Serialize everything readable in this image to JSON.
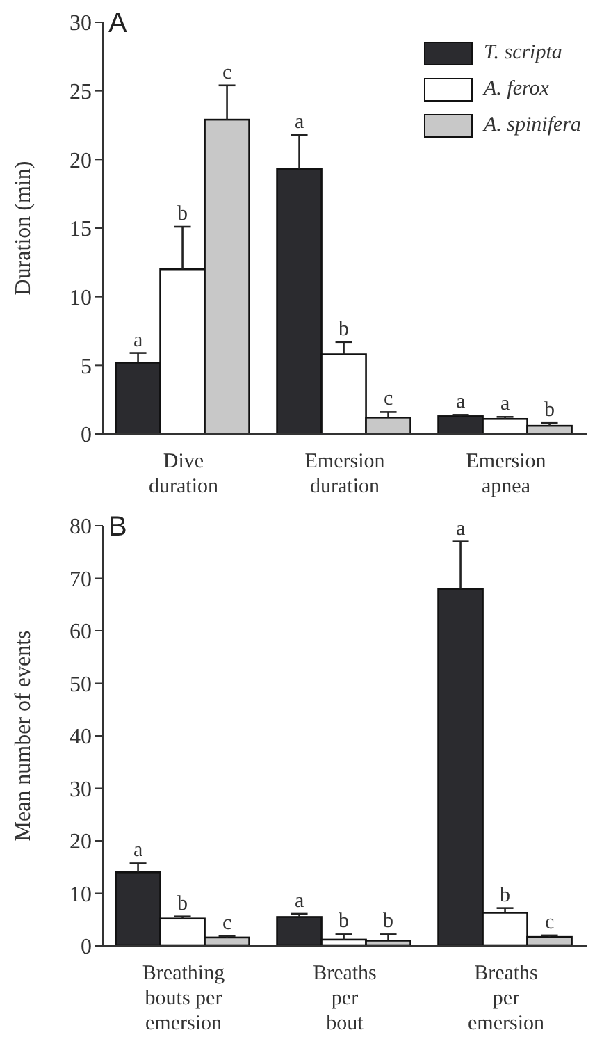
{
  "chart_data": [
    {
      "type": "bar",
      "title": "A",
      "ylabel": "Duration (min)",
      "categories": [
        "Dive\nduration",
        "Emersion\nduration",
        "Emersion\napnea"
      ],
      "ylim": [
        0,
        30
      ],
      "yticks": [
        0,
        5,
        10,
        15,
        20,
        25,
        30
      ],
      "grid": false,
      "legend": "top right",
      "series": [
        {
          "name": "T. scripta",
          "color": "#2b2b2f",
          "values": [
            5.2,
            19.3,
            1.3
          ],
          "errors": [
            [
              5.2,
              5.9
            ],
            [
              19.3,
              21.8
            ],
            [
              1.3,
              1.4
            ]
          ],
          "value_labels": [
            "a",
            "a",
            "a"
          ]
        },
        {
          "name": "A. ferox",
          "color": "#ffffff",
          "values": [
            12.0,
            5.8,
            1.1
          ],
          "errors": [
            [
              12.0,
              15.1
            ],
            [
              5.8,
              6.7
            ],
            [
              1.1,
              1.25
            ]
          ],
          "value_labels": [
            "b",
            "b",
            "a"
          ]
        },
        {
          "name": "A. spinifera",
          "color": "#c8c8c8",
          "values": [
            22.9,
            1.2,
            0.6
          ],
          "errors": [
            [
              22.9,
              25.4
            ],
            [
              1.2,
              1.6
            ],
            [
              0.6,
              0.8
            ]
          ],
          "value_labels": [
            "c",
            "c",
            "b"
          ]
        }
      ]
    },
    {
      "type": "bar",
      "title": "B",
      "ylabel": "Mean number of events",
      "categories": [
        "Breathing\nbouts per\nemersion",
        "Breaths\nper\nbout",
        "Breaths\nper\nemersion"
      ],
      "ylim": [
        0,
        80
      ],
      "yticks": [
        0,
        10,
        20,
        30,
        40,
        50,
        60,
        70,
        80
      ],
      "grid": false,
      "legend": false,
      "series": [
        {
          "color": "#2b2b2f",
          "values": [
            14.0,
            5.5,
            68.0
          ],
          "errors": [
            [
              14.0,
              15.7
            ],
            [
              5.5,
              6.1
            ],
            [
              68.0,
              77.0
            ]
          ],
          "value_labels": [
            "a",
            "a",
            "a"
          ]
        },
        {
          "color": "#ffffff",
          "values": [
            5.2,
            1.2,
            6.3
          ],
          "errors": [
            [
              5.2,
              5.6
            ],
            [
              1.2,
              2.2
            ],
            [
              6.3,
              7.2
            ]
          ],
          "value_labels": [
            "b",
            "b",
            "b"
          ]
        },
        {
          "color": "#c8c8c8",
          "values": [
            1.6,
            1.0,
            1.7
          ],
          "errors": [
            [
              1.6,
              1.9
            ],
            [
              1.0,
              2.2
            ],
            [
              1.7,
              2.0
            ]
          ],
          "value_labels": [
            "c",
            "b",
            "c"
          ]
        }
      ]
    }
  ]
}
